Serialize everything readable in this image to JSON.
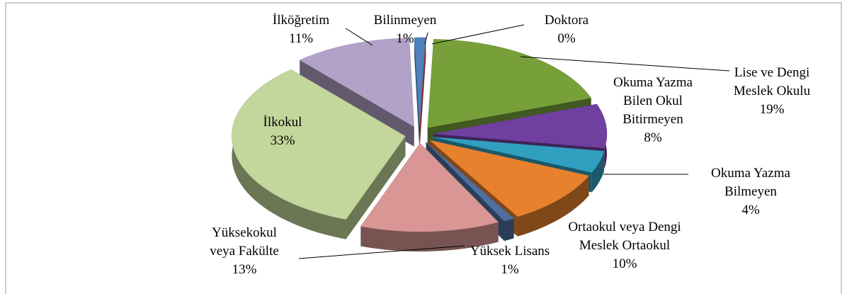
{
  "chart_data": {
    "type": "pie",
    "categories": [
      "Doktora",
      "Lise ve Dengi Meslek Okulu",
      "Okuma Yazma Bilen Okul Bitirmeyen",
      "Okuma Yazma Bilmeyen",
      "Ortaokul veya Dengi Meslek Ortaokul",
      "Yüksek Lisans",
      "Yüksekokul veya Fakülte",
      "İlkokul",
      "İlköğretim",
      "Bilinmeyen"
    ],
    "values": [
      0,
      19,
      8,
      4,
      10,
      1,
      13,
      33,
      11,
      1
    ],
    "value_labels": [
      "0%",
      "19%",
      "8%",
      "4%",
      "10%",
      "1%",
      "13%",
      "33%",
      "11%",
      "1%"
    ],
    "colors": [
      "#c0504d",
      "#77a03a",
      "#7040a0",
      "#31a0c0",
      "#e8812e",
      "#4f6fa0",
      "#d99694",
      "#c3d69b",
      "#b3a2c7",
      "#4f81bd"
    ]
  }
}
